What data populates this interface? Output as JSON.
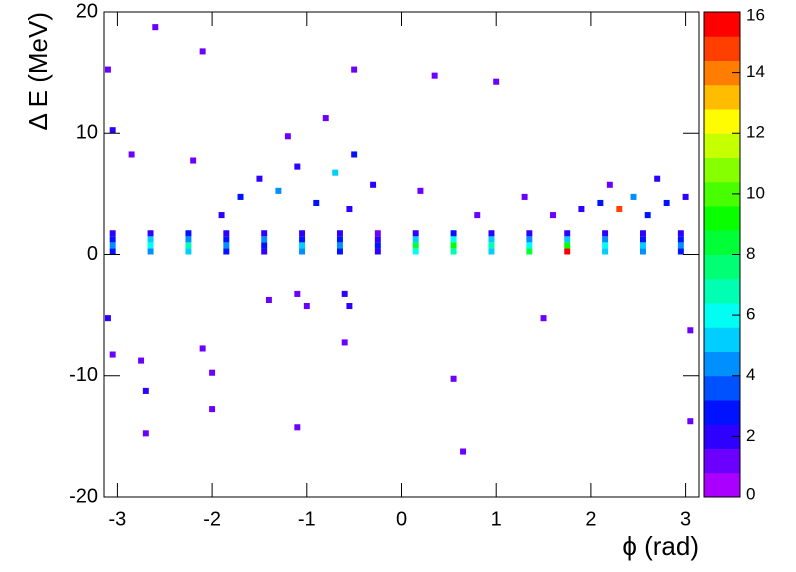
{
  "chart_data": {
    "type": "heatmap",
    "xlabel": "ϕ (rad)",
    "ylabel": "Δ E (MeV)",
    "xlim": [
      -3.1416,
      3.1416
    ],
    "xticks": [
      -3,
      -2,
      -1,
      0,
      1,
      2,
      3
    ],
    "ylim": [
      -20,
      20
    ],
    "yticks": [
      -20,
      -10,
      0,
      10,
      20
    ],
    "zlim": [
      0,
      16
    ],
    "zticks": [
      0,
      2,
      4,
      6,
      8,
      10,
      12,
      14,
      16
    ],
    "colormap": "rainbow",
    "x": [
      -3.05,
      -2.65,
      -2.25,
      -1.85,
      -1.45,
      -1.05,
      -0.65,
      -0.25,
      0.15,
      0.55,
      0.95,
      1.35,
      1.75,
      2.15,
      2.55,
      2.95,
      -3.05,
      -2.65,
      -2.25,
      -1.85,
      -1.45,
      -1.05,
      -0.65,
      -0.25,
      0.15,
      0.55,
      0.95,
      1.35,
      1.75,
      2.15,
      2.55,
      2.95,
      -3.05,
      -2.65,
      -2.25,
      -1.85,
      -1.45,
      -1.05,
      -0.65,
      -0.25,
      0.15,
      0.55,
      0.95,
      1.35,
      1.75,
      2.15,
      2.55,
      2.95,
      -3.05,
      -2.65,
      -2.25,
      -1.85,
      -1.45,
      -1.05,
      -0.65,
      -0.25,
      0.15,
      0.55,
      0.95,
      1.35,
      1.75,
      2.15,
      2.55,
      2.95,
      -1.9,
      -1.7,
      -1.5,
      -1.3,
      -1.1,
      -0.9,
      -0.7,
      -0.5,
      -0.3,
      -0.55,
      -1.2,
      -0.8,
      -2.2,
      0.2,
      0.8,
      1.3,
      1.9,
      2.1,
      2.3,
      2.45,
      2.6,
      2.8,
      3.0,
      2.2,
      2.7,
      1.6,
      -3.1,
      -3.05,
      -2.75,
      -2.7,
      -2.7,
      -2.1,
      -2.0,
      -2.0,
      -1.4,
      -1.1,
      -1.0,
      -0.6,
      -0.55,
      -0.6,
      -1.1,
      0.55,
      0.65,
      1.5,
      3.05,
      3.05,
      -3.1,
      -2.6,
      -2.1,
      -0.5,
      0.35,
      1.0,
      -3.05,
      -2.85
    ],
    "y": [
      0.25,
      0.25,
      0.25,
      0.25,
      0.25,
      0.25,
      0.25,
      0.25,
      0.25,
      0.25,
      0.25,
      0.25,
      0.25,
      0.25,
      0.25,
      0.25,
      0.75,
      0.75,
      0.75,
      0.75,
      0.75,
      0.75,
      0.75,
      0.75,
      0.75,
      0.75,
      0.75,
      0.75,
      0.75,
      0.75,
      0.75,
      0.75,
      1.25,
      1.25,
      1.25,
      1.25,
      1.25,
      1.25,
      1.25,
      1.25,
      1.25,
      1.25,
      1.25,
      1.25,
      1.25,
      1.25,
      1.25,
      1.25,
      1.75,
      1.75,
      1.75,
      1.75,
      1.75,
      1.75,
      1.75,
      1.75,
      1.75,
      1.75,
      1.75,
      1.75,
      1.75,
      1.75,
      1.75,
      1.75,
      3.25,
      4.75,
      6.25,
      5.25,
      7.25,
      4.25,
      6.75,
      8.25,
      5.75,
      3.75,
      9.75,
      11.25,
      7.75,
      5.25,
      3.25,
      4.75,
      3.75,
      4.25,
      3.75,
      4.75,
      3.25,
      4.25,
      4.75,
      5.75,
      6.25,
      3.25,
      -5.25,
      -8.25,
      -8.75,
      -11.25,
      -14.75,
      -7.75,
      -9.75,
      -12.75,
      -3.75,
      -3.25,
      -4.25,
      -3.25,
      -4.25,
      -7.25,
      -14.25,
      -10.25,
      -16.25,
      -5.25,
      -6.25,
      -13.75,
      15.25,
      18.75,
      16.75,
      15.25,
      14.75,
      14.25,
      10.25,
      8.25
    ],
    "values": [
      3,
      4,
      5,
      3,
      2,
      4,
      3,
      2,
      6,
      7,
      5,
      8,
      16,
      5,
      4,
      3,
      4,
      6,
      7,
      4,
      3,
      5,
      4,
      3,
      8,
      9,
      7,
      6,
      9,
      6,
      5,
      4,
      3,
      5,
      4,
      3,
      4,
      3,
      3,
      2,
      5,
      6,
      5,
      4,
      5,
      4,
      3,
      3,
      2,
      2,
      3,
      2,
      2,
      2,
      2,
      1,
      2,
      3,
      2,
      2,
      2,
      2,
      2,
      2,
      2,
      3,
      2,
      4,
      2,
      3,
      5,
      3,
      2,
      2,
      1,
      1,
      1,
      1,
      1,
      1,
      2,
      3,
      15,
      4,
      3,
      3,
      2,
      1,
      2,
      1,
      2,
      1,
      1,
      2,
      1,
      1,
      1,
      1,
      1,
      1,
      1,
      2,
      2,
      1,
      1,
      1,
      1,
      1,
      1,
      1,
      1,
      1,
      1,
      1,
      1,
      1,
      2,
      1
    ]
  }
}
